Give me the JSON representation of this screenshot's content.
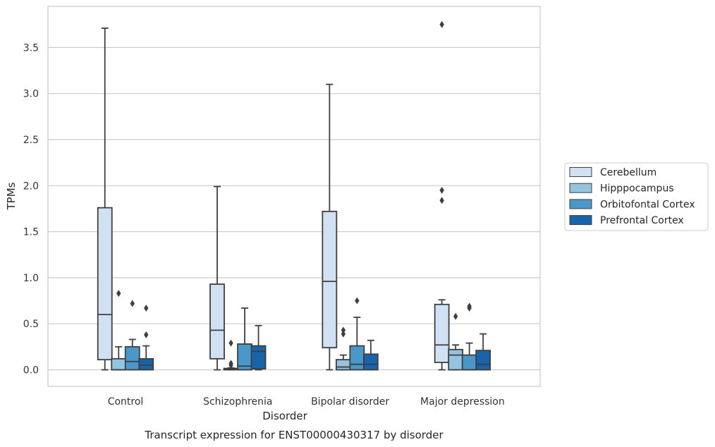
{
  "caption": "Transcript expression for ENST00000430317 by disorder",
  "chart_data": {
    "type": "box",
    "xlabel": "Disorder",
    "ylabel": "TPMs",
    "ylim": [
      -0.18,
      3.9
    ],
    "yticks": [
      "0.0",
      "0.5",
      "1.0",
      "1.5",
      "2.0",
      "2.5",
      "3.0",
      "3.5"
    ],
    "grid": "horizontal",
    "legend_position": "right",
    "categories": [
      "Control",
      "Schizophrenia",
      "Bipolar disorder",
      "Major depression"
    ],
    "series": [
      {
        "name": "Cerebellum",
        "color": "#d0e1f2",
        "boxes": [
          {
            "min": 0.0,
            "q1": 0.11,
            "median": 0.6,
            "q3": 1.76,
            "max": 3.71,
            "outliers": []
          },
          {
            "min": 0.0,
            "q1": 0.12,
            "median": 0.43,
            "q3": 0.93,
            "max": 1.99,
            "outliers": []
          },
          {
            "min": 0.0,
            "q1": 0.24,
            "median": 0.96,
            "q3": 1.72,
            "max": 3.1,
            "outliers": []
          },
          {
            "min": 0.0,
            "q1": 0.08,
            "median": 0.27,
            "q3": 0.71,
            "max": 0.76,
            "outliers": [
              1.84,
              1.95,
              3.75
            ]
          }
        ]
      },
      {
        "name": "Hipppocampus",
        "color": "#94c4df",
        "boxes": [
          {
            "min": 0.0,
            "q1": 0.0,
            "median": 0.0,
            "q3": 0.12,
            "max": 0.25,
            "outliers": [
              0.83
            ]
          },
          {
            "min": 0.0,
            "q1": 0.0,
            "median": 0.005,
            "q3": 0.015,
            "max": 0.02,
            "outliers": [
              0.05,
              0.07,
              0.29
            ]
          },
          {
            "min": 0.0,
            "q1": 0.0,
            "median": 0.03,
            "q3": 0.11,
            "max": 0.16,
            "outliers": [
              0.39,
              0.43
            ]
          },
          {
            "min": 0.0,
            "q1": 0.0,
            "median": 0.16,
            "q3": 0.22,
            "max": 0.27,
            "outliers": [
              0.58
            ]
          }
        ]
      },
      {
        "name": "Orbitofontal Cortex",
        "color": "#4a98c9",
        "boxes": [
          {
            "min": 0.0,
            "q1": 0.0,
            "median": 0.09,
            "q3": 0.25,
            "max": 0.33,
            "outliers": [
              0.72
            ]
          },
          {
            "min": 0.0,
            "q1": 0.0,
            "median": 0.04,
            "q3": 0.28,
            "max": 0.67,
            "outliers": []
          },
          {
            "min": 0.0,
            "q1": 0.0,
            "median": 0.06,
            "q3": 0.26,
            "max": 0.57,
            "outliers": [
              0.75
            ]
          },
          {
            "min": 0.0,
            "q1": 0.0,
            "median": 0.0,
            "q3": 0.16,
            "max": 0.29,
            "outliers": [
              0.67,
              0.69
            ]
          }
        ]
      },
      {
        "name": "Prefrontal Cortex",
        "color": "#1764ab",
        "boxes": [
          {
            "min": 0.0,
            "q1": 0.0,
            "median": 0.05,
            "q3": 0.12,
            "max": 0.26,
            "outliers": [
              0.38,
              0.67
            ]
          },
          {
            "min": 0.0,
            "q1": 0.01,
            "median": 0.2,
            "q3": 0.26,
            "max": 0.48,
            "outliers": []
          },
          {
            "min": 0.0,
            "q1": 0.0,
            "median": 0.06,
            "q3": 0.17,
            "max": 0.32,
            "outliers": []
          },
          {
            "min": 0.0,
            "q1": 0.0,
            "median": 0.06,
            "q3": 0.21,
            "max": 0.39,
            "outliers": []
          }
        ]
      }
    ]
  }
}
